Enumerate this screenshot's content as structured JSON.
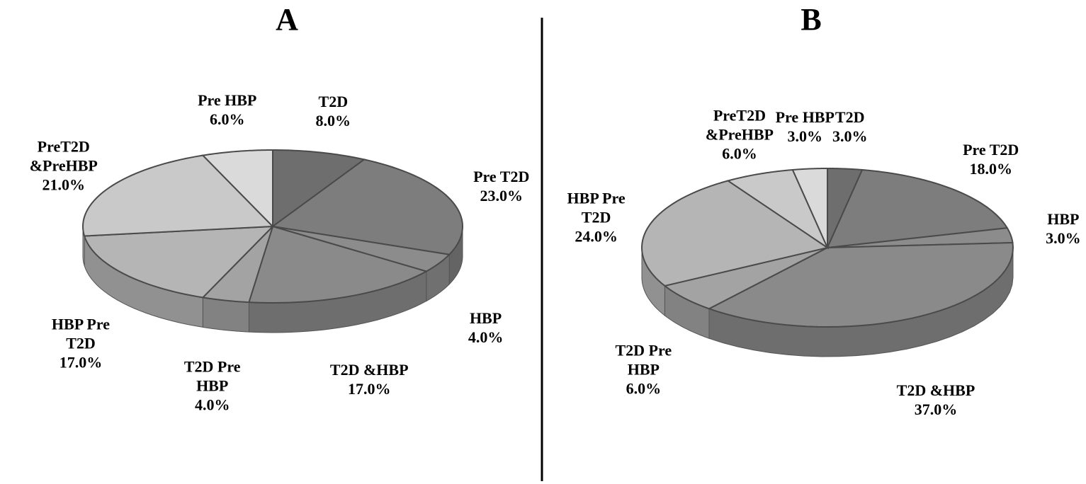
{
  "chart_data": [
    {
      "type": "pie3d",
      "title": "A",
      "categories": [
        "T2D",
        "Pre T2D",
        "HBP",
        "T2D &HBP",
        "T2D Pre HBP",
        "HBP Pre T2D",
        "PreT2D &PreHBP",
        "Pre HBP"
      ],
      "values": [
        8,
        23,
        4,
        17,
        4,
        17,
        21,
        6
      ],
      "value_labels": [
        "8.0%",
        "23.0%",
        "4.0%",
        "17.0%",
        "4.0%",
        "17.0%",
        "21.0%",
        "6.0%"
      ],
      "colors": [
        "#6e6e6e",
        "#7d7d7d",
        "#8c8c8c",
        "#8a8a8a",
        "#a3a3a3",
        "#b5b5b5",
        "#c9c9c9",
        "#dadada"
      ]
    },
    {
      "type": "pie3d",
      "title": "B",
      "categories": [
        "T2D",
        "Pre T2D",
        "HBP",
        "T2D &HBP",
        "T2D Pre HBP",
        "HBP Pre T2D",
        "PreT2D &PreHBP",
        "Pre HBP"
      ],
      "values": [
        3,
        18,
        3,
        37,
        6,
        24,
        6,
        3
      ],
      "value_labels": [
        "3.0%",
        "18.0%",
        "3.0%",
        "37.0%",
        "6.0%",
        "24.0%",
        "6.0%",
        "3.0%"
      ],
      "colors": [
        "#6e6e6e",
        "#7d7d7d",
        "#8c8c8c",
        "#8a8a8a",
        "#a3a3a3",
        "#b5b5b5",
        "#c9c9c9",
        "#dadada"
      ]
    }
  ]
}
